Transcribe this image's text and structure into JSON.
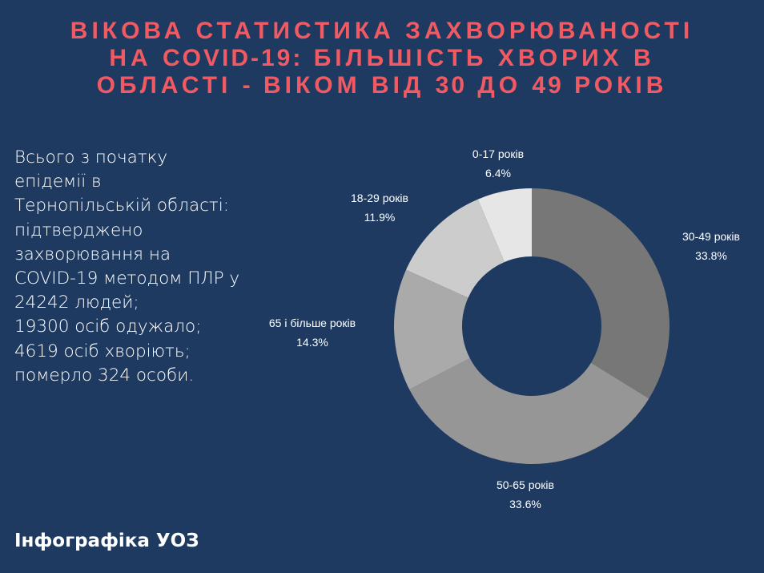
{
  "title": {
    "line1": "ВІКОВА СТАТИСТИКА ЗАХВОРЮВАНОСТІ",
    "line2_prefix": "НА ",
    "line2_bold": "COVID-19:",
    "line2_suffix": " БІЛЬШІСТЬ ХВОРИХ В",
    "line3_a": "ОБЛАСТІ ",
    "line3_dash": "-",
    "line3_b": " ВІКОМ ВІД ",
    "line3_n1": "30",
    "line3_c": " ДО ",
    "line3_n2": "49",
    "line3_d": " РОКІВ"
  },
  "summary_lines": [
    "Всього з початку",
    "епідемії в",
    "Тернопільській області:",
    "підтверджено",
    "захворювання на",
    "COVID-19 методом ПЛР у",
    "24242 людей;",
    "19300 осіб одужало;",
    "4619 осіб хворіють;",
    "померло 324 особи."
  ],
  "footer": "Інфографіка УОЗ",
  "colors": {
    "background": "#1f3a60",
    "title": "#f25a63"
  },
  "chart_data": {
    "type": "pie",
    "donut": true,
    "slices": [
      {
        "label": "0-17 років",
        "value": 6.4,
        "value_label": "6.4%",
        "color": "#e6e6e6"
      },
      {
        "label": "30-49 років",
        "value": 33.8,
        "value_label": "33.8%",
        "color": "#777777"
      },
      {
        "label": "50-65 років",
        "value": 33.6,
        "value_label": "33.6%",
        "color": "#969696"
      },
      {
        "label": "65 і більше років",
        "value": 14.3,
        "value_label": "14.3%",
        "color": "#aaaaaa"
      },
      {
        "label": "18-29 років",
        "value": 11.9,
        "value_label": "11.9%",
        "color": "#cccccc"
      }
    ]
  }
}
